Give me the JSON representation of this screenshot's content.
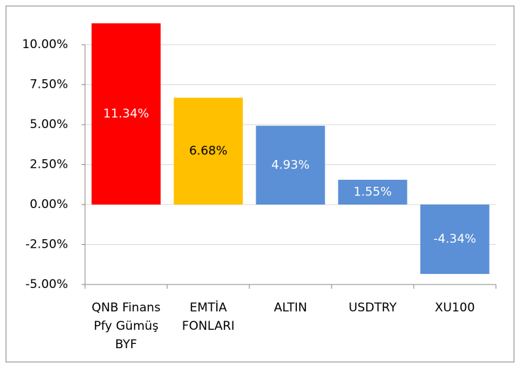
{
  "chart_data": {
    "type": "bar",
    "categories": [
      "QNB Finans Pfy Gümüş BYF",
      "EMTİA FONLARI",
      "ALTIN",
      "USDTRY",
      "XU100"
    ],
    "values": [
      11.34,
      6.68,
      4.93,
      1.55,
      -4.34
    ],
    "value_labels": [
      "11.34%",
      "6.68%",
      "4.93%",
      "1.55%",
      "-4.34%"
    ],
    "colors": [
      "#ff0000",
      "#ffc000",
      "#5b8fd6",
      "#5b8fd6",
      "#5b8fd6"
    ],
    "label_colors": [
      "#ffffff",
      "#000000",
      "#ffffff",
      "#ffffff",
      "#ffffff"
    ],
    "ylim": [
      -5,
      12
    ],
    "yticks": [
      {
        "value": -5,
        "label": "-5.00%"
      },
      {
        "value": -2.5,
        "label": "-2.50%"
      },
      {
        "value": 0,
        "label": "0.00%"
      },
      {
        "value": 2.5,
        "label": "2.50%"
      },
      {
        "value": 5,
        "label": "5.00%"
      },
      {
        "value": 7.5,
        "label": "7.50%"
      },
      {
        "value": 10,
        "label": "10.00%"
      }
    ],
    "grid": true
  }
}
